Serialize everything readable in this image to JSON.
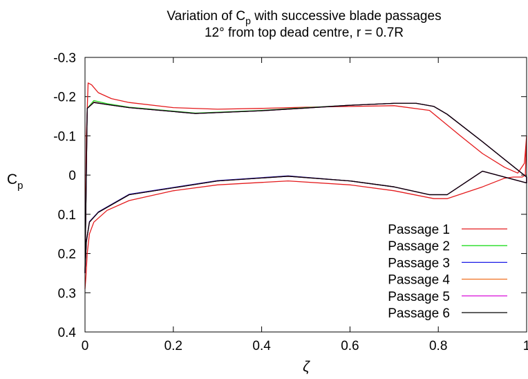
{
  "chart_data": {
    "type": "line",
    "title": "Variation of Cp with successive blade passages",
    "title_parts": {
      "prefix": "Variation of C",
      "sub": "p",
      "suffix": " with successive blade passages"
    },
    "subtitle": "12° from top dead centre, r = 0.7R",
    "xlabel": "ζ",
    "ylabel": "Cp",
    "ylabel_parts": {
      "main": "C",
      "sub": "p"
    },
    "xlim": [
      0,
      1
    ],
    "ylim": [
      0.4,
      -0.3
    ],
    "y_axis_inverted": true,
    "grid": false,
    "legend_position": "bottom-right",
    "x_ticks": [
      "0",
      "0.2",
      "0.4",
      "0.6",
      "0.8",
      "1"
    ],
    "x_tick_values": [
      0,
      0.2,
      0.4,
      0.6,
      0.8,
      1
    ],
    "y_ticks": [
      "-0.3",
      "-0.2",
      "-0.1",
      "0",
      "0.1",
      "0.2",
      "0.3",
      "0.4"
    ],
    "y_tick_values": [
      -0.3,
      -0.2,
      -0.1,
      0,
      0.1,
      0.2,
      0.3,
      0.4
    ],
    "series": [
      {
        "name": "Passage 1",
        "color": "#e41a1c",
        "x": [
          0.0,
          0.003,
          0.007,
          0.015,
          0.03,
          0.06,
          0.1,
          0.2,
          0.3,
          0.4,
          0.5,
          0.6,
          0.7,
          0.78,
          0.85,
          0.9,
          0.95,
          0.98,
          0.995,
          1.0,
          0.997,
          0.99,
          0.97,
          0.95,
          0.9,
          0.82,
          0.79,
          0.7,
          0.6,
          0.46,
          0.3,
          0.2,
          0.1,
          0.05,
          0.02,
          0.01,
          0.005,
          0.002,
          0.0
        ],
        "values": [
          0.25,
          -0.1,
          -0.235,
          -0.23,
          -0.21,
          -0.195,
          -0.185,
          -0.172,
          -0.168,
          -0.17,
          -0.173,
          -0.175,
          -0.177,
          -0.165,
          -0.1,
          -0.055,
          -0.02,
          -0.005,
          -0.03,
          -0.1,
          0.0,
          0.005,
          0.005,
          0.008,
          0.03,
          0.06,
          0.06,
          0.04,
          0.025,
          0.015,
          0.025,
          0.04,
          0.065,
          0.09,
          0.12,
          0.15,
          0.2,
          0.26,
          0.29
        ]
      },
      {
        "name": "Passage 2",
        "color": "#22dd22",
        "x": [
          0.0,
          0.005,
          0.02,
          0.05,
          0.1,
          0.25,
          0.4,
          0.5,
          0.6,
          0.7,
          0.75,
          0.79,
          0.82,
          0.9,
          0.95,
          1.0,
          1.0,
          0.95,
          0.9,
          0.82,
          0.78,
          0.7,
          0.6,
          0.46,
          0.3,
          0.1,
          0.03,
          0.01,
          0.003,
          0.0
        ],
        "values": [
          0.25,
          -0.17,
          -0.19,
          -0.182,
          -0.173,
          -0.158,
          -0.165,
          -0.172,
          -0.178,
          -0.183,
          -0.183,
          -0.175,
          -0.155,
          -0.085,
          -0.04,
          0.005,
          0.02,
          0.005,
          -0.01,
          0.05,
          0.05,
          0.03,
          0.015,
          0.003,
          0.015,
          0.05,
          0.095,
          0.12,
          0.17,
          0.25
        ]
      },
      {
        "name": "Passage 3",
        "color": "#1a1ae6",
        "x": [
          0.0,
          0.005,
          0.02,
          0.05,
          0.1,
          0.25,
          0.4,
          0.5,
          0.6,
          0.7,
          0.75,
          0.79,
          0.82,
          0.9,
          0.95,
          1.0,
          1.0,
          0.95,
          0.9,
          0.82,
          0.78,
          0.7,
          0.6,
          0.46,
          0.3,
          0.1,
          0.03,
          0.01,
          0.003,
          0.0
        ],
        "values": [
          0.25,
          -0.17,
          -0.186,
          -0.18,
          -0.172,
          -0.157,
          -0.164,
          -0.171,
          -0.178,
          -0.183,
          -0.183,
          -0.175,
          -0.155,
          -0.085,
          -0.04,
          0.005,
          0.02,
          0.005,
          -0.01,
          0.05,
          0.05,
          0.03,
          0.015,
          0.002,
          0.014,
          0.049,
          0.094,
          0.119,
          0.17,
          0.25
        ]
      },
      {
        "name": "Passage 4",
        "color": "#f07020",
        "x": [
          0.0,
          0.005,
          0.02,
          0.05,
          0.1,
          0.25,
          0.4,
          0.5,
          0.6,
          0.7,
          0.75,
          0.79,
          0.82,
          0.9,
          0.95,
          1.0,
          1.0,
          0.95,
          0.9,
          0.82,
          0.78,
          0.7,
          0.6,
          0.46,
          0.3,
          0.1,
          0.03,
          0.01,
          0.003,
          0.0
        ],
        "values": [
          0.25,
          -0.17,
          -0.186,
          -0.18,
          -0.172,
          -0.157,
          -0.164,
          -0.171,
          -0.178,
          -0.183,
          -0.183,
          -0.175,
          -0.155,
          -0.085,
          -0.04,
          0.005,
          0.02,
          0.005,
          -0.01,
          0.05,
          0.05,
          0.03,
          0.015,
          0.003,
          0.015,
          0.05,
          0.095,
          0.12,
          0.17,
          0.25
        ]
      },
      {
        "name": "Passage 5",
        "color": "#dd22dd",
        "x": [
          0.0,
          0.005,
          0.02,
          0.05,
          0.1,
          0.25,
          0.4,
          0.5,
          0.6,
          0.7,
          0.75,
          0.79,
          0.82,
          0.9,
          0.95,
          1.0,
          1.0,
          0.95,
          0.9,
          0.82,
          0.78,
          0.7,
          0.6,
          0.46,
          0.3,
          0.1,
          0.03,
          0.01,
          0.003,
          0.0
        ],
        "values": [
          0.25,
          -0.17,
          -0.185,
          -0.18,
          -0.172,
          -0.157,
          -0.164,
          -0.171,
          -0.178,
          -0.183,
          -0.183,
          -0.175,
          -0.155,
          -0.085,
          -0.04,
          0.005,
          0.02,
          0.005,
          -0.01,
          0.05,
          0.05,
          0.03,
          0.015,
          0.003,
          0.015,
          0.05,
          0.095,
          0.12,
          0.17,
          0.25
        ]
      },
      {
        "name": "Passage 6",
        "color": "#000000",
        "x": [
          0.0,
          0.005,
          0.02,
          0.05,
          0.1,
          0.25,
          0.4,
          0.5,
          0.6,
          0.7,
          0.75,
          0.79,
          0.82,
          0.9,
          0.95,
          1.0,
          1.0,
          0.95,
          0.9,
          0.82,
          0.78,
          0.7,
          0.6,
          0.46,
          0.3,
          0.1,
          0.03,
          0.01,
          0.003,
          0.0
        ],
        "values": [
          0.25,
          -0.17,
          -0.185,
          -0.18,
          -0.172,
          -0.157,
          -0.164,
          -0.171,
          -0.178,
          -0.183,
          -0.183,
          -0.175,
          -0.155,
          -0.085,
          -0.04,
          0.005,
          0.02,
          0.005,
          -0.01,
          0.05,
          0.05,
          0.03,
          0.015,
          0.003,
          0.015,
          0.05,
          0.095,
          0.12,
          0.17,
          0.25
        ]
      }
    ]
  }
}
